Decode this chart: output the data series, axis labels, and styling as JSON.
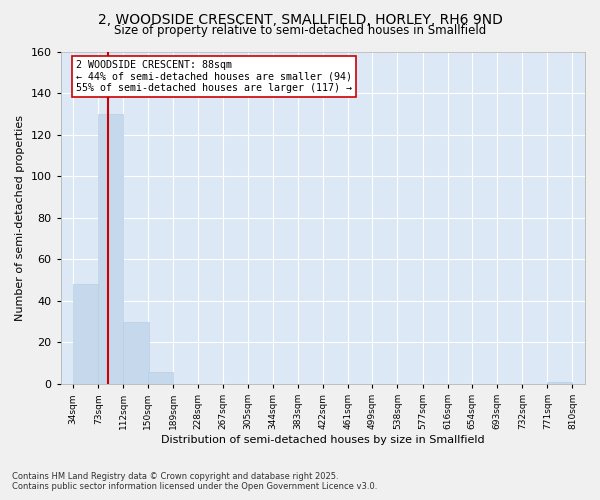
{
  "title": "2, WOODSIDE CRESCENT, SMALLFIELD, HORLEY, RH6 9ND",
  "subtitle": "Size of property relative to semi-detached houses in Smallfield",
  "xlabel": "Distribution of semi-detached houses by size in Smallfield",
  "ylabel": "Number of semi-detached properties",
  "property_size": 88,
  "property_label": "2 WOODSIDE CRESCENT: 88sqm",
  "annotation_text_1": "← 44% of semi-detached houses are smaller (94)",
  "annotation_text_2": "55% of semi-detached houses are larger (117) →",
  "bin_labels": [
    "34sqm",
    "73sqm",
    "112sqm",
    "150sqm",
    "189sqm",
    "228sqm",
    "267sqm",
    "305sqm",
    "344sqm",
    "383sqm",
    "422sqm",
    "461sqm",
    "499sqm",
    "538sqm",
    "577sqm",
    "616sqm",
    "654sqm",
    "693sqm",
    "732sqm",
    "771sqm",
    "810sqm"
  ],
  "bins_left": [
    34,
    73,
    112,
    150,
    189,
    228,
    267,
    305,
    344,
    383,
    422,
    461,
    499,
    538,
    577,
    616,
    654,
    693,
    732,
    771
  ],
  "bin_width": 39,
  "counts": [
    48,
    130,
    30,
    6,
    0,
    0,
    0,
    0,
    0,
    0,
    0,
    0,
    0,
    0,
    0,
    0,
    0,
    0,
    0,
    1
  ],
  "bar_color": "#c5d8ec",
  "bar_edge_color": "#b8cfe8",
  "line_color": "#cc0000",
  "annotation_box_color": "#cc0000",
  "fig_facecolor": "#f0f0f0",
  "plot_facecolor": "#dce8f5",
  "grid_color": "#ffffff",
  "ylim": [
    0,
    160
  ],
  "yticks": [
    0,
    20,
    40,
    60,
    80,
    100,
    120,
    140,
    160
  ],
  "title_fontsize": 10,
  "subtitle_fontsize": 8.5,
  "footer_line1": "Contains HM Land Registry data © Crown copyright and database right 2025.",
  "footer_line2": "Contains public sector information licensed under the Open Government Licence v3.0."
}
